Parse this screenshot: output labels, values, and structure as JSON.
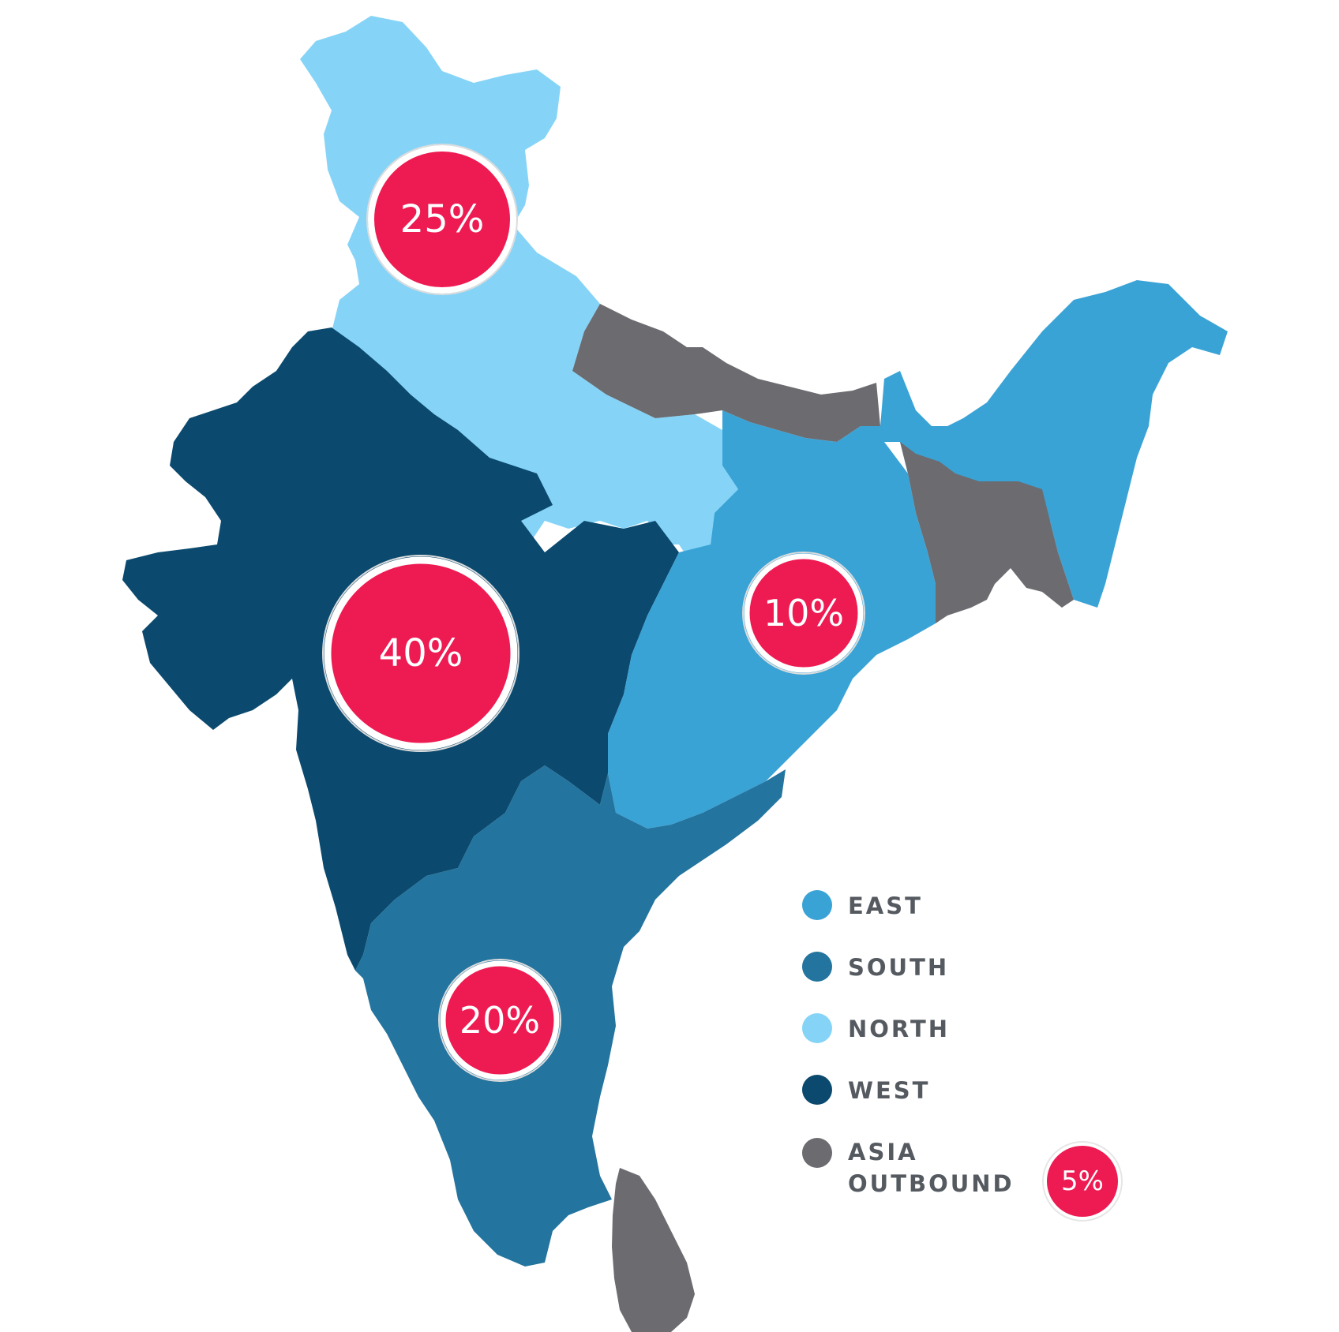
{
  "colors": {
    "east": "#3aa3d6",
    "south": "#23749e",
    "north": "#85d4f7",
    "west": "#0b4a6e",
    "asia_outbound": "#6b6b70",
    "badge": "#ee1a52"
  },
  "regions": {
    "north": {
      "label": "NORTH",
      "share": "25%"
    },
    "west": {
      "label": "WEST",
      "share": "40%"
    },
    "east": {
      "label": "EAST",
      "share": "10%"
    },
    "south": {
      "label": "SOUTH",
      "share": "20%"
    },
    "asia_outbound": {
      "label_line1": "ASIA",
      "label_line2": "OUTBOUND",
      "share": "5%"
    }
  }
}
